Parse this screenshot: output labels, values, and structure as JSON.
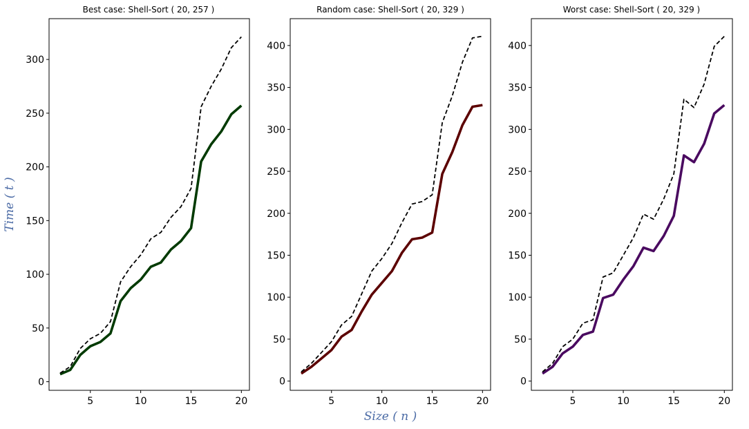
{
  "figure": {
    "ylabel": "Time ( t )",
    "xlabel": "Size ( n )"
  },
  "chart_data": [
    {
      "type": "line",
      "title": "Best case: Shell-Sort ( 20, 257 )",
      "x": [
        2,
        3,
        4,
        5,
        6,
        7,
        8,
        9,
        10,
        11,
        12,
        13,
        14,
        15,
        16,
        17,
        18,
        19,
        20
      ],
      "xlim": [
        0.9,
        20.8
      ],
      "ylim": [
        -8,
        338
      ],
      "xticks": [
        5,
        10,
        15,
        20
      ],
      "yticks": [
        0,
        50,
        100,
        150,
        200,
        250,
        300
      ],
      "series": [
        {
          "color": "#003a00",
          "style": "solid",
          "values": [
            7,
            11,
            25,
            33,
            37,
            45,
            75,
            87,
            95,
            107,
            111,
            123,
            131,
            143,
            205,
            221,
            233,
            249,
            257
          ]
        },
        {
          "color": "#000000",
          "style": "dashed",
          "values": [
            8,
            14,
            31,
            40,
            45,
            56,
            93,
            107,
            118,
            133,
            139,
            153,
            163,
            180,
            256,
            275,
            291,
            311,
            321
          ]
        }
      ]
    },
    {
      "type": "line",
      "title": "Random case: Shell-Sort ( 20, 329 )",
      "x": [
        2,
        3,
        4,
        5,
        6,
        7,
        8,
        9,
        10,
        11,
        12,
        13,
        14,
        15,
        16,
        17,
        18,
        19,
        20
      ],
      "xlim": [
        0.9,
        20.8
      ],
      "ylim": [
        -11,
        432
      ],
      "xticks": [
        5,
        10,
        15,
        20
      ],
      "yticks": [
        0,
        50,
        100,
        150,
        200,
        250,
        300,
        350,
        400
      ],
      "series": [
        {
          "color": "#5c0000",
          "style": "solid",
          "values": [
            9,
            17,
            27,
            37,
            53,
            61,
            83,
            103,
            117,
            131,
            153,
            169,
            171,
            177,
            247,
            273,
            305,
            327,
            329
          ]
        },
        {
          "color": "#000000",
          "style": "dashed",
          "values": [
            11,
            21,
            34,
            47,
            67,
            77,
            104,
            131,
            146,
            164,
            189,
            211,
            214,
            222,
            308,
            340,
            380,
            409,
            411
          ]
        }
      ]
    },
    {
      "type": "line",
      "title": "Worst case: Shell-Sort ( 20, 329 )",
      "x": [
        2,
        3,
        4,
        5,
        6,
        7,
        8,
        9,
        10,
        11,
        12,
        13,
        14,
        15,
        16,
        17,
        18,
        19,
        20
      ],
      "xlim": [
        0.9,
        20.8
      ],
      "ylim": [
        -11,
        432
      ],
      "xticks": [
        5,
        10,
        15,
        20
      ],
      "yticks": [
        0,
        50,
        100,
        150,
        200,
        250,
        300,
        350,
        400
      ],
      "series": [
        {
          "color": "#4a0a60",
          "style": "solid",
          "values": [
            9,
            17,
            33,
            41,
            55,
            59,
            99,
            103,
            121,
            137,
            159,
            155,
            173,
            197,
            269,
            261,
            283,
            319,
            329
          ]
        },
        {
          "color": "#000000",
          "style": "dashed",
          "values": [
            11,
            21,
            41,
            50,
            69,
            73,
            124,
            129,
            150,
            171,
            199,
            193,
            217,
            247,
            336,
            326,
            354,
            399,
            411
          ]
        }
      ]
    }
  ]
}
